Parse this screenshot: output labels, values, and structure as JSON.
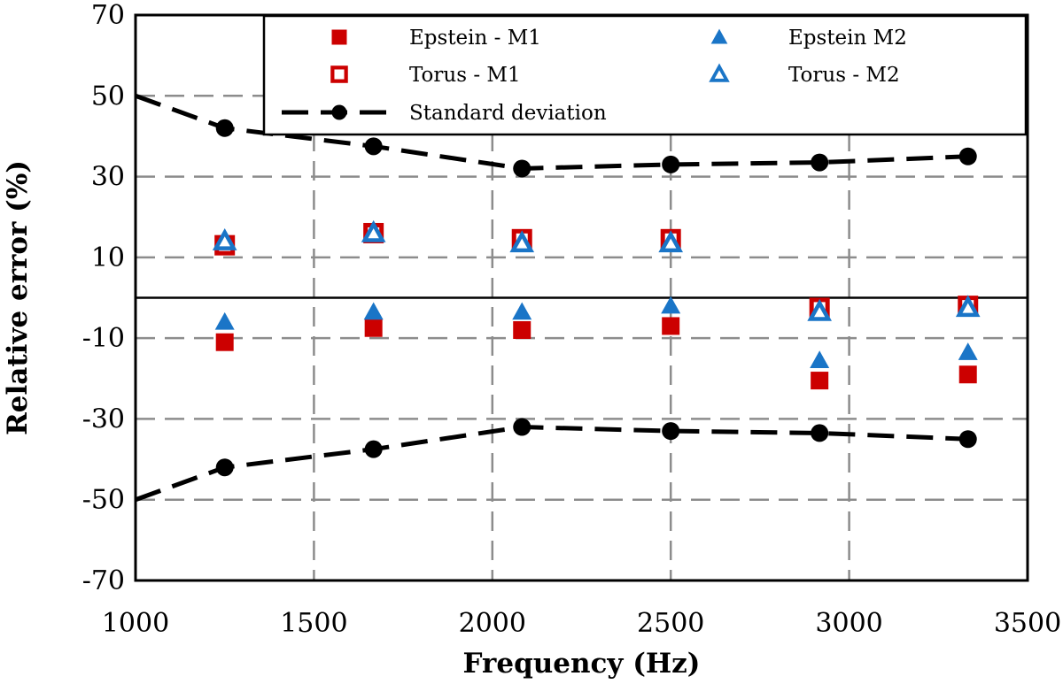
{
  "chart_data": {
    "type": "scatter",
    "title": "",
    "xlabel": "Frequency (Hz)",
    "ylabel": "Relative error (%)",
    "xlim": [
      1000,
      3500
    ],
    "ylim": [
      -70,
      70
    ],
    "xticks": [
      1000,
      1500,
      2000,
      2500,
      3000,
      3500
    ],
    "yticks": [
      70,
      50,
      30,
      10,
      -10,
      -30,
      -50,
      -70
    ],
    "ytick_labels": [
      "70",
      "50",
      "30",
      "10",
      "-10",
      "-30",
      "-50",
      "-70"
    ],
    "grid": "dashed",
    "legend_position": "top",
    "series": [
      {
        "name": "Epstein - M1",
        "marker": "filled-square",
        "color": "#cc0000",
        "x": [
          1250,
          1667,
          2083,
          2500,
          2917,
          3333
        ],
        "y": [
          -11,
          -7.5,
          -8,
          -7,
          -20.5,
          -19
        ]
      },
      {
        "name": "Torus - M1",
        "marker": "open-square",
        "color": "#cc0000",
        "x": [
          1250,
          1667,
          2083,
          2500,
          2917,
          3333
        ],
        "y": [
          13,
          16,
          14.5,
          14.5,
          -2.5,
          -2
        ]
      },
      {
        "name": "Epstein M2",
        "marker": "filled-triangle",
        "color": "#1a75c7",
        "x": [
          1250,
          1667,
          2083,
          2500,
          2917,
          3333
        ],
        "y": [
          -6,
          -3.5,
          -3.5,
          -2,
          -15.5,
          -13.5
        ]
      },
      {
        "name": "Torus - M2",
        "marker": "open-triangle",
        "color": "#1a75c7",
        "x": [
          1250,
          1667,
          2083,
          2500,
          2917,
          3333
        ],
        "y": [
          14,
          16,
          13.5,
          13.5,
          -3.5,
          -2.5
        ]
      },
      {
        "name": "Standard deviation",
        "marker": "filled-circle",
        "line": "dashed",
        "color": "#000000",
        "x": [
          1000,
          1250,
          1667,
          2083,
          2500,
          2917,
          3333
        ],
        "y": [
          50,
          42,
          37.5,
          32,
          33,
          33.5,
          35
        ]
      },
      {
        "name": "",
        "marker": "filled-circle",
        "line": "dashed",
        "color": "#000000",
        "x": [
          1000,
          1250,
          1667,
          2083,
          2500,
          2917,
          3333
        ],
        "y": [
          -50,
          -42,
          -37.5,
          -32,
          -33,
          -33.5,
          -35
        ]
      }
    ],
    "legend": [
      {
        "label": "Epstein - M1",
        "series": 0
      },
      {
        "label": "Epstein M2",
        "series": 2
      },
      {
        "label": "Torus - M1",
        "series": 1
      },
      {
        "label": "Torus - M2",
        "series": 3
      },
      {
        "label": "Standard deviation",
        "series": 4
      }
    ]
  }
}
